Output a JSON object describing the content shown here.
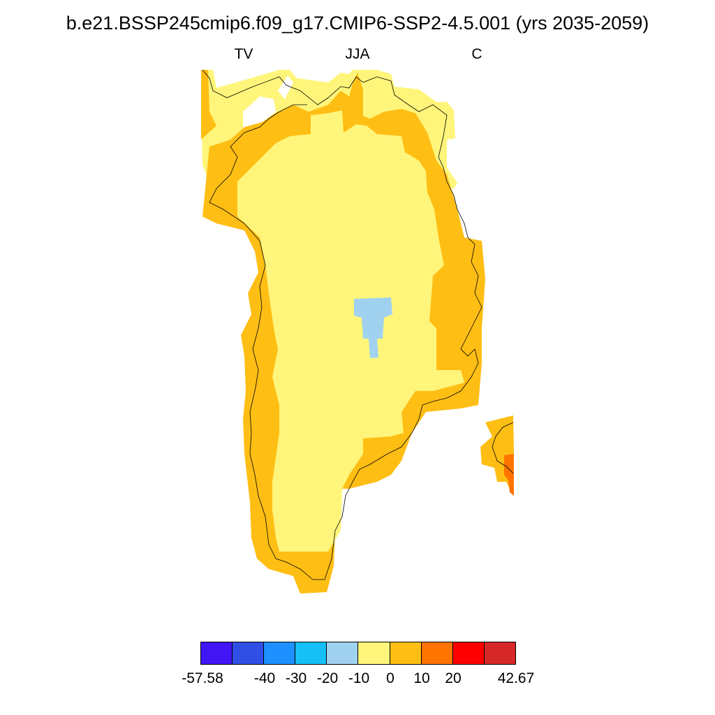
{
  "title": "b.e21.BSSP245cmip6.f09_g17.CMIP6-SSP2-4.5.001 (yrs 2035-2059)",
  "subtitles": {
    "left": "TV",
    "center": "JJA",
    "right": "C"
  },
  "colorbar": {
    "colors": [
      "#4016f5",
      "#3050e5",
      "#1e90ff",
      "#14c0f5",
      "#a0d2f0",
      "#fff57a",
      "#ffbe14",
      "#ff7300",
      "#ff0000",
      "#d72828"
    ],
    "labels": [
      "-57.58",
      "-40",
      "-30",
      "-20",
      "-10",
      "0",
      "10",
      "20",
      "42.67"
    ]
  },
  "map": {
    "region": "Greenland",
    "legend_levels_shown": [
      "-10 to 0",
      "0 to 10",
      "10 to 20",
      "20 to 30"
    ]
  }
}
